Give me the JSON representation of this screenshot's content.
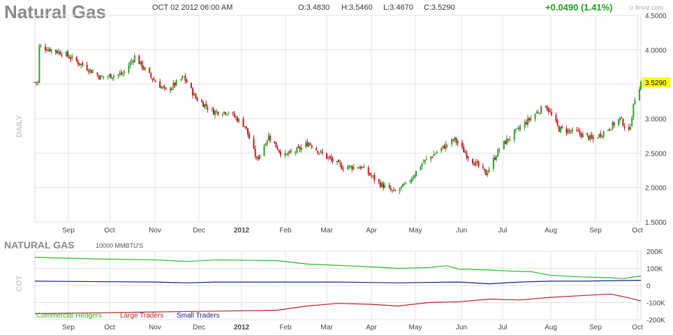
{
  "header": {
    "title": "Natural Gas",
    "datetime": "OCT 02 2012 06:00 AM",
    "open": "O:3.4830",
    "high": "H:3.5460",
    "low": "L:3.4670",
    "close": "C:3.5290",
    "change": "+0.0490 (1.41%)",
    "logo": "finviz.com"
  },
  "price_panel": {
    "side_label": "DAILY",
    "last_price_tag": "3.5290"
  },
  "cot_panel": {
    "title": "NATURAL GAS",
    "unit": "10000 MMBTU'S",
    "side_label": "COT"
  },
  "colors": {
    "up_candle": "#2e9e2e",
    "down_candle": "#c21d1d",
    "grid": "#e3e3e3",
    "commercial": "#22bb22",
    "large": "#bb2222",
    "small": "#1a1a99",
    "price_tag": "#ffff00"
  },
  "chart_data": [
    {
      "type": "candlestick",
      "title": "Natural Gas",
      "x_ticks": [
        "Sep",
        "Oct",
        "Nov",
        "Dec",
        "2012",
        "Feb",
        "Mar",
        "Apr",
        "May",
        "Jun",
        "Jul",
        "Aug",
        "Sep",
        "Oct"
      ],
      "y_ticks": [
        "4.5000",
        "4.0000",
        "3.5000",
        "3.0000",
        "2.5000",
        "2.0000",
        "1.5000"
      ],
      "ylim": [
        1.5,
        4.5
      ],
      "last_value": 3.529,
      "approx_close_path": [
        [
          "2011-08-25",
          4.05
        ],
        [
          "2011-09-10",
          3.95
        ],
        [
          "2011-09-25",
          3.75
        ],
        [
          "2011-10-05",
          3.6
        ],
        [
          "2011-10-20",
          3.65
        ],
        [
          "2011-10-28",
          3.9
        ],
        [
          "2011-11-08",
          3.6
        ],
        [
          "2011-11-18",
          3.4
        ],
        [
          "2011-11-30",
          3.6
        ],
        [
          "2011-12-08",
          3.3
        ],
        [
          "2011-12-20",
          3.1
        ],
        [
          "2011-12-30",
          3.1
        ],
        [
          "2012-01-10",
          2.9
        ],
        [
          "2012-01-18",
          2.4
        ],
        [
          "2012-01-26",
          2.75
        ],
        [
          "2012-02-05",
          2.45
        ],
        [
          "2012-02-15",
          2.55
        ],
        [
          "2012-02-22",
          2.65
        ],
        [
          "2012-03-01",
          2.5
        ],
        [
          "2012-03-15",
          2.3
        ],
        [
          "2012-03-28",
          2.3
        ],
        [
          "2012-04-10",
          2.05
        ],
        [
          "2012-04-19",
          1.93
        ],
        [
          "2012-04-28",
          2.05
        ],
        [
          "2012-05-08",
          2.35
        ],
        [
          "2012-05-20",
          2.55
        ],
        [
          "2012-05-30",
          2.7
        ],
        [
          "2012-06-08",
          2.45
        ],
        [
          "2012-06-20",
          2.2
        ],
        [
          "2012-06-30",
          2.6
        ],
        [
          "2012-07-12",
          2.85
        ],
        [
          "2012-07-22",
          3.05
        ],
        [
          "2012-07-30",
          3.2
        ],
        [
          "2012-08-08",
          2.85
        ],
        [
          "2012-08-20",
          2.8
        ],
        [
          "2012-08-31",
          2.7
        ],
        [
          "2012-09-10",
          2.85
        ],
        [
          "2012-09-18",
          3.0
        ],
        [
          "2012-09-24",
          2.8
        ],
        [
          "2012-09-28",
          3.3
        ],
        [
          "2012-10-02",
          3.529
        ]
      ]
    },
    {
      "type": "line",
      "title": "NATURAL GAS",
      "y_ticks": [
        "200K",
        "100K",
        "0",
        "-100K",
        "-200K"
      ],
      "ylim": [
        -200000,
        200000
      ],
      "legend": [
        "Commercial Hedgers",
        "Large Traders",
        "Small Traders"
      ],
      "series": [
        {
          "name": "Commercial Hedgers",
          "color": "#22bb22",
          "values": [
            [
              0,
              165000
            ],
            [
              0.1,
              155000
            ],
            [
              0.2,
              150000
            ],
            [
              0.25,
              140000
            ],
            [
              0.3,
              150000
            ],
            [
              0.4,
              145000
            ],
            [
              0.45,
              125000
            ],
            [
              0.55,
              110000
            ],
            [
              0.6,
              100000
            ],
            [
              0.65,
              105000
            ],
            [
              0.68,
              115000
            ],
            [
              0.7,
              95000
            ],
            [
              0.75,
              90000
            ],
            [
              0.78,
              85000
            ],
            [
              0.82,
              80000
            ],
            [
              0.85,
              60000
            ],
            [
              0.9,
              50000
            ],
            [
              0.95,
              45000
            ],
            [
              0.97,
              40000
            ],
            [
              1,
              55000
            ]
          ]
        },
        {
          "name": "Large Traders",
          "color": "#bb2222",
          "values": [
            [
              0,
              -165000
            ],
            [
              0.1,
              -160000
            ],
            [
              0.2,
              -155000
            ],
            [
              0.3,
              -150000
            ],
            [
              0.4,
              -145000
            ],
            [
              0.45,
              -120000
            ],
            [
              0.5,
              -105000
            ],
            [
              0.55,
              -110000
            ],
            [
              0.6,
              -120000
            ],
            [
              0.65,
              -100000
            ],
            [
              0.7,
              -95000
            ],
            [
              0.75,
              -80000
            ],
            [
              0.8,
              -85000
            ],
            [
              0.85,
              -70000
            ],
            [
              0.9,
              -60000
            ],
            [
              0.95,
              -50000
            ],
            [
              0.97,
              -65000
            ],
            [
              1,
              -90000
            ]
          ]
        },
        {
          "name": "Small Traders",
          "color": "#1a1a99",
          "values": [
            [
              0,
              25000
            ],
            [
              0.2,
              20000
            ],
            [
              0.25,
              15000
            ],
            [
              0.3,
              20000
            ],
            [
              0.5,
              20000
            ],
            [
              0.6,
              15000
            ],
            [
              0.7,
              20000
            ],
            [
              0.75,
              10000
            ],
            [
              0.8,
              20000
            ],
            [
              0.85,
              25000
            ],
            [
              0.9,
              25000
            ],
            [
              1,
              30000
            ]
          ]
        }
      ]
    }
  ]
}
